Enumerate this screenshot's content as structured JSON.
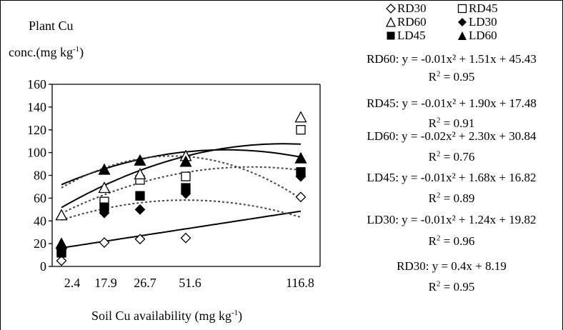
{
  "chart_data": {
    "type": "scatter",
    "ylabel_line1": "Plant Cu",
    "ylabel_line2_main": "conc.(mg kg",
    "ylabel_line2_exp": "-1",
    "ylabel_line2_end": ")",
    "xlabel_main": "Soil Cu availability (mg kg",
    "xlabel_exp": "-1",
    "xlabel_end": ")",
    "ylim": [
      0,
      160
    ],
    "yticks": [
      "0",
      "20",
      "40",
      "60",
      "80",
      "100",
      "120",
      "140",
      "160"
    ],
    "x_categories": [
      "2.4",
      "17.9",
      "26.7",
      "51.6",
      "116.8"
    ],
    "series": [
      {
        "name": "RD30",
        "marker": "diamond-open",
        "values": [
          5,
          21,
          24,
          25,
          61
        ]
      },
      {
        "name": "RD45",
        "marker": "square-open",
        "values": [
          13,
          57,
          76,
          79,
          120
        ]
      },
      {
        "name": "RD60",
        "marker": "triangle-open",
        "values": [
          45,
          69,
          81,
          97,
          131
        ]
      },
      {
        "name": "LD30",
        "marker": "diamond-filled",
        "values": [
          15,
          47,
          50,
          64,
          79
        ]
      },
      {
        "name": "LD45",
        "marker": "square-filled",
        "values": [
          12,
          52,
          62,
          69,
          83
        ]
      },
      {
        "name": "LD60",
        "marker": "triangle-filled",
        "values": [
          20,
          85,
          93,
          92,
          95
        ]
      }
    ],
    "fits": [
      {
        "series": "RD30",
        "style": "solid",
        "a": 0.0,
        "b": 0.4,
        "c": 8.19,
        "equation": "RD30: y = 0.4x + 8.19",
        "r2": " = 0.95"
      },
      {
        "series": "RD45",
        "style": "solid",
        "a": -0.01,
        "b": 1.9,
        "c": 17.48,
        "equation": "RD45: y = -0.01x² + 1.90x + 17.48",
        "r2": " = 0.91"
      },
      {
        "series": "RD60",
        "style": "solid",
        "a": -0.01,
        "b": 1.51,
        "c": 45.43,
        "equation": "RD60: y = -0.01x² + 1.51x + 45.43",
        "r2": " = 0.95"
      },
      {
        "series": "LD30",
        "style": "dotted",
        "a": -0.01,
        "b": 1.24,
        "c": 19.82,
        "equation": "LD30: y = -0.01x² + 1.24x + 19.82",
        "r2": " = 0.96"
      },
      {
        "series": "LD45",
        "style": "dotted",
        "a": -0.01,
        "b": 1.68,
        "c": 16.82,
        "equation": "LD45: y = -0.01x² + 1.68x + 16.82",
        "r2": " = 0.89"
      },
      {
        "series": "LD60",
        "style": "dotted",
        "a": -0.02,
        "b": 2.3,
        "c": 30.84,
        "equation": "LD60: y = -0.02x² + 2.30x + 30.84",
        "r2": " = 0.76"
      }
    ],
    "legend": [
      "RD30",
      "RD45",
      "RD60",
      "LD30",
      "LD45",
      "LD60"
    ],
    "r2_label": "R",
    "r2_exp": "2"
  }
}
